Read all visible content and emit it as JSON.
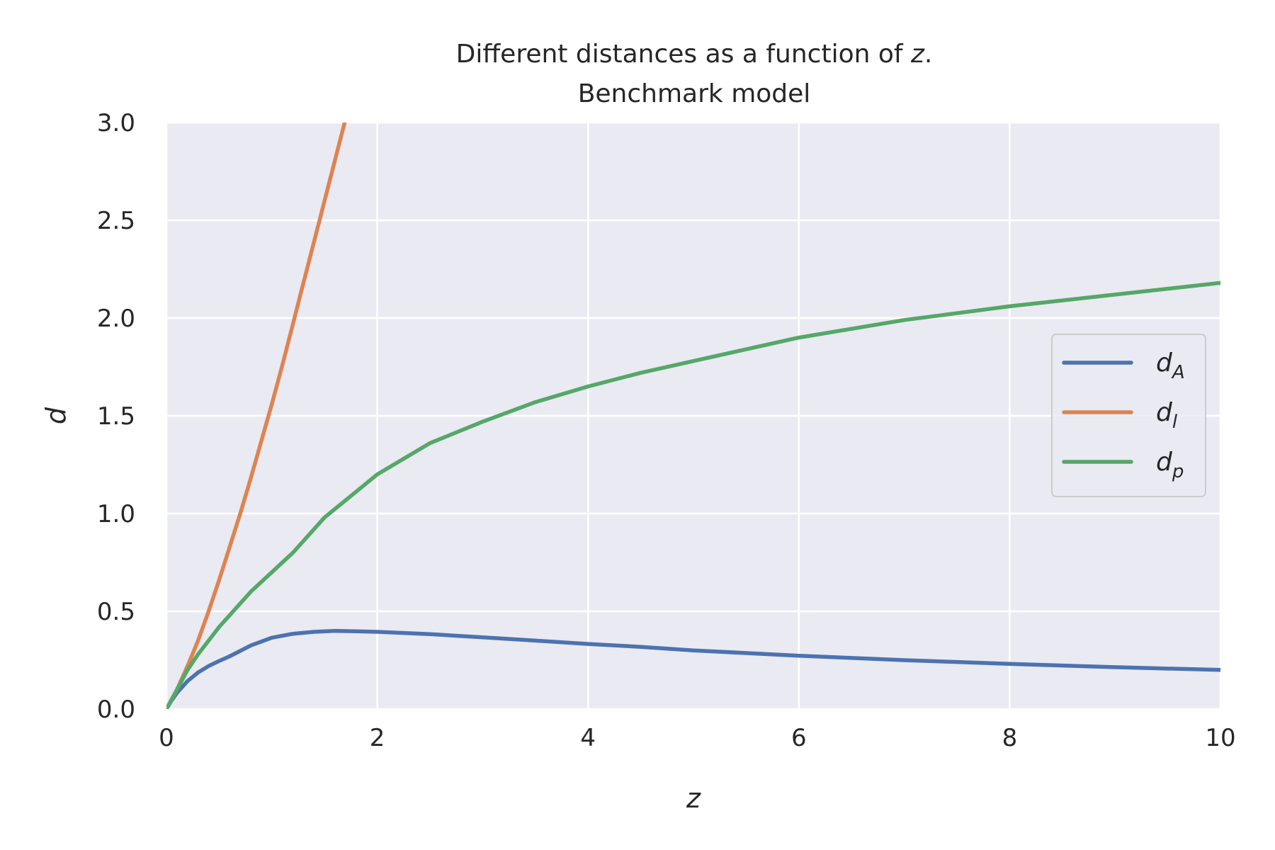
{
  "chart_data": {
    "type": "line",
    "title_line1_prefix": "Different distances as a function of ",
    "title_line1_var": "z",
    "title_line1_suffix": ".",
    "title_line2": "Benchmark model",
    "xlabel": "z",
    "ylabel": "d",
    "xlim": [
      0,
      10
    ],
    "ylim": [
      0,
      3.0
    ],
    "x_ticks": [
      0,
      2,
      4,
      6,
      8,
      10
    ],
    "x_tick_labels": [
      "0",
      "2",
      "4",
      "6",
      "8",
      "10"
    ],
    "y_ticks": [
      0,
      0.5,
      1.0,
      1.5,
      2.0,
      2.5,
      3.0
    ],
    "y_tick_labels": [
      "0.0",
      "0.5",
      "1.0",
      "1.5",
      "2.0",
      "2.5",
      "3.0"
    ],
    "grid": true,
    "legend_position": "center-right",
    "series": [
      {
        "name_base": "d",
        "name_sub": "A",
        "color": "#4c72b0",
        "x": [
          0,
          0.05,
          0.1,
          0.2,
          0.3,
          0.4,
          0.5,
          0.6,
          0.8,
          1.0,
          1.2,
          1.4,
          1.6,
          1.8,
          2.0,
          2.5,
          3.0,
          3.5,
          4.0,
          4.5,
          5.0,
          6.0,
          7.0,
          8.0,
          9.0,
          10.0
        ],
        "y": [
          0,
          0.045,
          0.083,
          0.143,
          0.187,
          0.22,
          0.246,
          0.27,
          0.325,
          0.365,
          0.385,
          0.395,
          0.4,
          0.398,
          0.395,
          0.383,
          0.367,
          0.35,
          0.333,
          0.318,
          0.3,
          0.273,
          0.25,
          0.231,
          0.214,
          0.2
        ]
      },
      {
        "name_base": "d",
        "name_sub": "l",
        "color": "#dd8452",
        "x": [
          0,
          0.1,
          0.2,
          0.3,
          0.4,
          0.5,
          0.6,
          0.7,
          0.8,
          0.9,
          1.0,
          1.1,
          1.2,
          1.3,
          1.4,
          1.5,
          1.6,
          1.7,
          1.75
        ],
        "y": [
          0,
          0.1,
          0.22,
          0.35,
          0.5,
          0.66,
          0.83,
          1.0,
          1.18,
          1.37,
          1.56,
          1.76,
          1.97,
          2.18,
          2.39,
          2.6,
          2.81,
          3.02,
          3.12
        ]
      },
      {
        "name_base": "d",
        "name_sub": "p",
        "color": "#55a868",
        "x": [
          0,
          0.1,
          0.2,
          0.3,
          0.4,
          0.5,
          0.6,
          0.8,
          1.0,
          1.2,
          1.5,
          2.0,
          2.5,
          3.0,
          3.5,
          4.0,
          4.5,
          5.0,
          6.0,
          7.0,
          8.0,
          9.0,
          10.0
        ],
        "y": [
          0,
          0.1,
          0.2,
          0.28,
          0.35,
          0.42,
          0.48,
          0.6,
          0.7,
          0.8,
          0.98,
          1.2,
          1.36,
          1.47,
          1.57,
          1.65,
          1.72,
          1.78,
          1.9,
          1.99,
          2.06,
          2.12,
          2.18
        ]
      }
    ]
  }
}
